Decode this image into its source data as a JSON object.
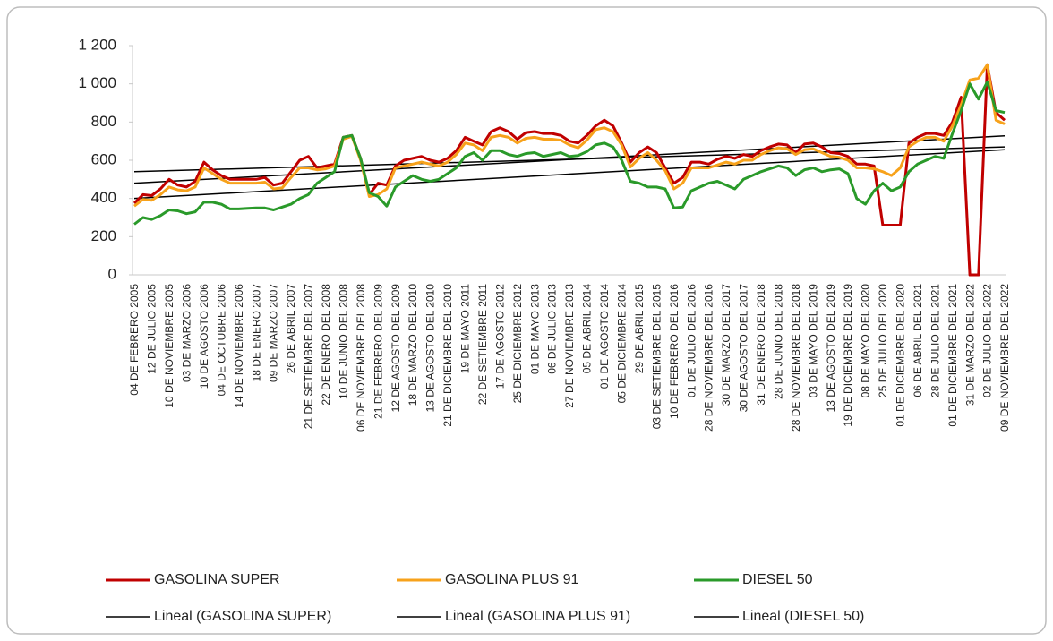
{
  "chart_data": {
    "type": "line",
    "categories": [
      "04 DE FEBRERO  2005",
      null,
      "12 DE JULIO  2005",
      null,
      "10 DE NOVIEMBRE  2005",
      null,
      "03 DE MARZO 2006",
      null,
      "10 DE AGOSTO 2006",
      null,
      "04 DE OCTUBRE 2006",
      null,
      "14 DE NOVIEMBRE 2006",
      null,
      "18 DE ENERO 2007",
      null,
      "09 DE MARZO 2007",
      null,
      "26 DE ABRIL 2007",
      null,
      "21 DE SETIEMBRE DEL 2007",
      null,
      "22 DE ENERO DEL 2008",
      null,
      "10 DE JUNIO DEL 2008",
      null,
      "06 DE NOVIEMBRE DEL 2008",
      null,
      "21 DE FEBRERO DEL 2009",
      null,
      "12 DE AGOSTO DEL 2009",
      null,
      "18 DE MARZO DEL 2010",
      null,
      "13 DE AGOSTO DEL 2010",
      null,
      "21 DE DICIEMBRE DEL 2010",
      null,
      "19 DE MAYO 2011",
      null,
      "22 DE SETIEMBRE 2011",
      null,
      "17 DE AGOSTO 2012",
      null,
      "25 DE DICIEMBRE 2012",
      null,
      "01 DE MAYO 2013",
      null,
      "06 DE JULIO 2013",
      null,
      "27 DE NOVIEMBRE 2013",
      null,
      "05 DE ABRIL 2014",
      null,
      "01 DE AGOSTO 2014",
      null,
      "05 DE DICIEMBRE 2014",
      null,
      "29 DE ABRIL 2015",
      null,
      "03 DE SETIEMBRE DEL 2015",
      null,
      "10 DE FEBRERO DEL 2016",
      null,
      "01 DE JULIO DEL 2016",
      null,
      "28 DE NOVIEMBRE DEL 2016",
      null,
      "30 DE MARZO DEL 2017",
      null,
      "30 DE AGOSTO DEL 2017",
      null,
      "31 DE ENERO DEL 2018",
      null,
      "28 DE JUNIO DEL 2018",
      null,
      "28 DE NOVIEMBRE DEL 2018",
      null,
      "03 DE MAYO DEL 2019",
      null,
      "13 DE AGOSTO DEL 2019",
      null,
      "19 DE DICIEMBRE DEL 2019",
      null,
      "08 DE MAYO DEL 2020",
      null,
      "25 DE JULIO DEL 2020",
      null,
      "01 DE DICIEMBRE DEL 2020",
      null,
      "06 DE ABRIL DEL 2021",
      null,
      "28 DE JULIO DEL 2021",
      null,
      "01 DE DICIEMBRE DEL 2021",
      null,
      "31 DE MARZO DEL 2022",
      null,
      "02 DE JULIO DEL 2022",
      null,
      "09 DE NOVIEMBRE DEL 2022"
    ],
    "series": [
      {
        "name": "GASOLINA SUPER",
        "color": "#c00000",
        "values": [
          375,
          420,
          415,
          450,
          500,
          470,
          460,
          490,
          590,
          550,
          520,
          500,
          500,
          500,
          500,
          510,
          470,
          480,
          540,
          600,
          620,
          560,
          570,
          580,
          720,
          730,
          610,
          420,
          480,
          470,
          570,
          600,
          610,
          620,
          600,
          590,
          610,
          650,
          720,
          700,
          680,
          750,
          770,
          750,
          710,
          745,
          750,
          740,
          740,
          730,
          700,
          690,
          730,
          780,
          810,
          780,
          690,
          590,
          640,
          670,
          640,
          560,
          480,
          510,
          590,
          590,
          580,
          605,
          620,
          610,
          630,
          620,
          650,
          670,
          685,
          680,
          640,
          685,
          690,
          670,
          640,
          635,
          620,
          580,
          580,
          570,
          260,
          260,
          260,
          690,
          720,
          740,
          740,
          730,
          800,
          930,
          0,
          0,
          1100,
          850,
          810
        ]
      },
      {
        "name": "GASOLINA PLUS 91",
        "color": "#f7a21b",
        "values": [
          360,
          395,
          390,
          420,
          460,
          445,
          440,
          460,
          560,
          530,
          500,
          480,
          480,
          480,
          480,
          485,
          450,
          455,
          510,
          560,
          560,
          550,
          555,
          570,
          710,
          725,
          600,
          410,
          420,
          450,
          560,
          570,
          580,
          590,
          580,
          570,
          590,
          630,
          690,
          680,
          650,
          720,
          730,
          720,
          690,
          715,
          720,
          710,
          710,
          705,
          680,
          665,
          705,
          760,
          770,
          750,
          680,
          565,
          610,
          640,
          600,
          545,
          450,
          480,
          560,
          560,
          560,
          575,
          590,
          580,
          600,
          600,
          630,
          650,
          665,
          660,
          630,
          655,
          660,
          640,
          620,
          615,
          600,
          560,
          560,
          555,
          540,
          520,
          560,
          670,
          700,
          720,
          720,
          700,
          780,
          890,
          1020,
          1030,
          1100,
          810,
          790
        ]
      },
      {
        "name": "DIESEL 50",
        "color": "#2a9a2a",
        "values": [
          265,
          300,
          290,
          310,
          340,
          335,
          320,
          330,
          380,
          380,
          370,
          345,
          345,
          348,
          350,
          350,
          340,
          355,
          370,
          400,
          420,
          480,
          510,
          540,
          720,
          730,
          610,
          430,
          410,
          360,
          460,
          490,
          520,
          500,
          490,
          500,
          530,
          560,
          620,
          640,
          600,
          650,
          650,
          630,
          620,
          635,
          640,
          620,
          630,
          640,
          620,
          625,
          645,
          680,
          690,
          670,
          600,
          490,
          480,
          460,
          460,
          450,
          350,
          355,
          440,
          460,
          480,
          490,
          470,
          450,
          500,
          520,
          540,
          555,
          570,
          560,
          520,
          550,
          560,
          540,
          550,
          555,
          530,
          400,
          370,
          440,
          480,
          440,
          460,
          540,
          580,
          600,
          620,
          610,
          740,
          860,
          1000,
          920,
          1010,
          860,
          850
        ]
      }
    ],
    "trendlines": [
      {
        "name": "Lineal (GASOLINA SUPER)",
        "color": "#000000",
        "values": [
          540,
          670
        ]
      },
      {
        "name": "Lineal (GASOLINA PLUS 91)",
        "color": "#000000",
        "values": [
          480,
          728
        ]
      },
      {
        "name": "Lineal (DIESEL 50)",
        "color": "#000000",
        "values": [
          400,
          655
        ]
      }
    ],
    "ylim": [
      0,
      1200
    ],
    "yticks": [
      0,
      200,
      400,
      600,
      800,
      {
        "value": 1000,
        "label": "1 000"
      },
      {
        "value": 1200,
        "label": "1 200"
      }
    ],
    "grid": false,
    "legend": "bottom"
  }
}
